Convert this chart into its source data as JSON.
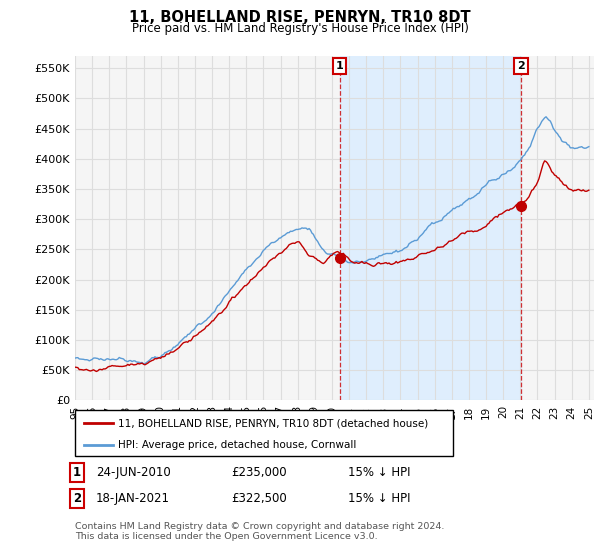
{
  "title": "11, BOHELLAND RISE, PENRYN, TR10 8DT",
  "subtitle": "Price paid vs. HM Land Registry's House Price Index (HPI)",
  "legend_line1": "11, BOHELLAND RISE, PENRYN, TR10 8DT (detached house)",
  "legend_line2": "HPI: Average price, detached house, Cornwall",
  "transaction1_date": "24-JUN-2010",
  "transaction1_price": 235000,
  "transaction1_label": "15% ↓ HPI",
  "transaction2_date": "18-JAN-2021",
  "transaction2_price": 322500,
  "transaction2_label": "15% ↓ HPI",
  "footer": "Contains HM Land Registry data © Crown copyright and database right 2024.\nThis data is licensed under the Open Government Licence v3.0.",
  "hpi_color": "#5b9bd5",
  "price_color": "#c00000",
  "shade_color": "#ddeeff",
  "ylim": [
    0,
    570000
  ],
  "yticks": [
    0,
    50000,
    100000,
    150000,
    200000,
    250000,
    300000,
    350000,
    400000,
    450000,
    500000,
    550000
  ],
  "background_color": "#ffffff",
  "plot_bg_color": "#f5f5f5",
  "grid_color": "#dddddd",
  "t1_year": 2010.458,
  "t2_year": 2021.042
}
